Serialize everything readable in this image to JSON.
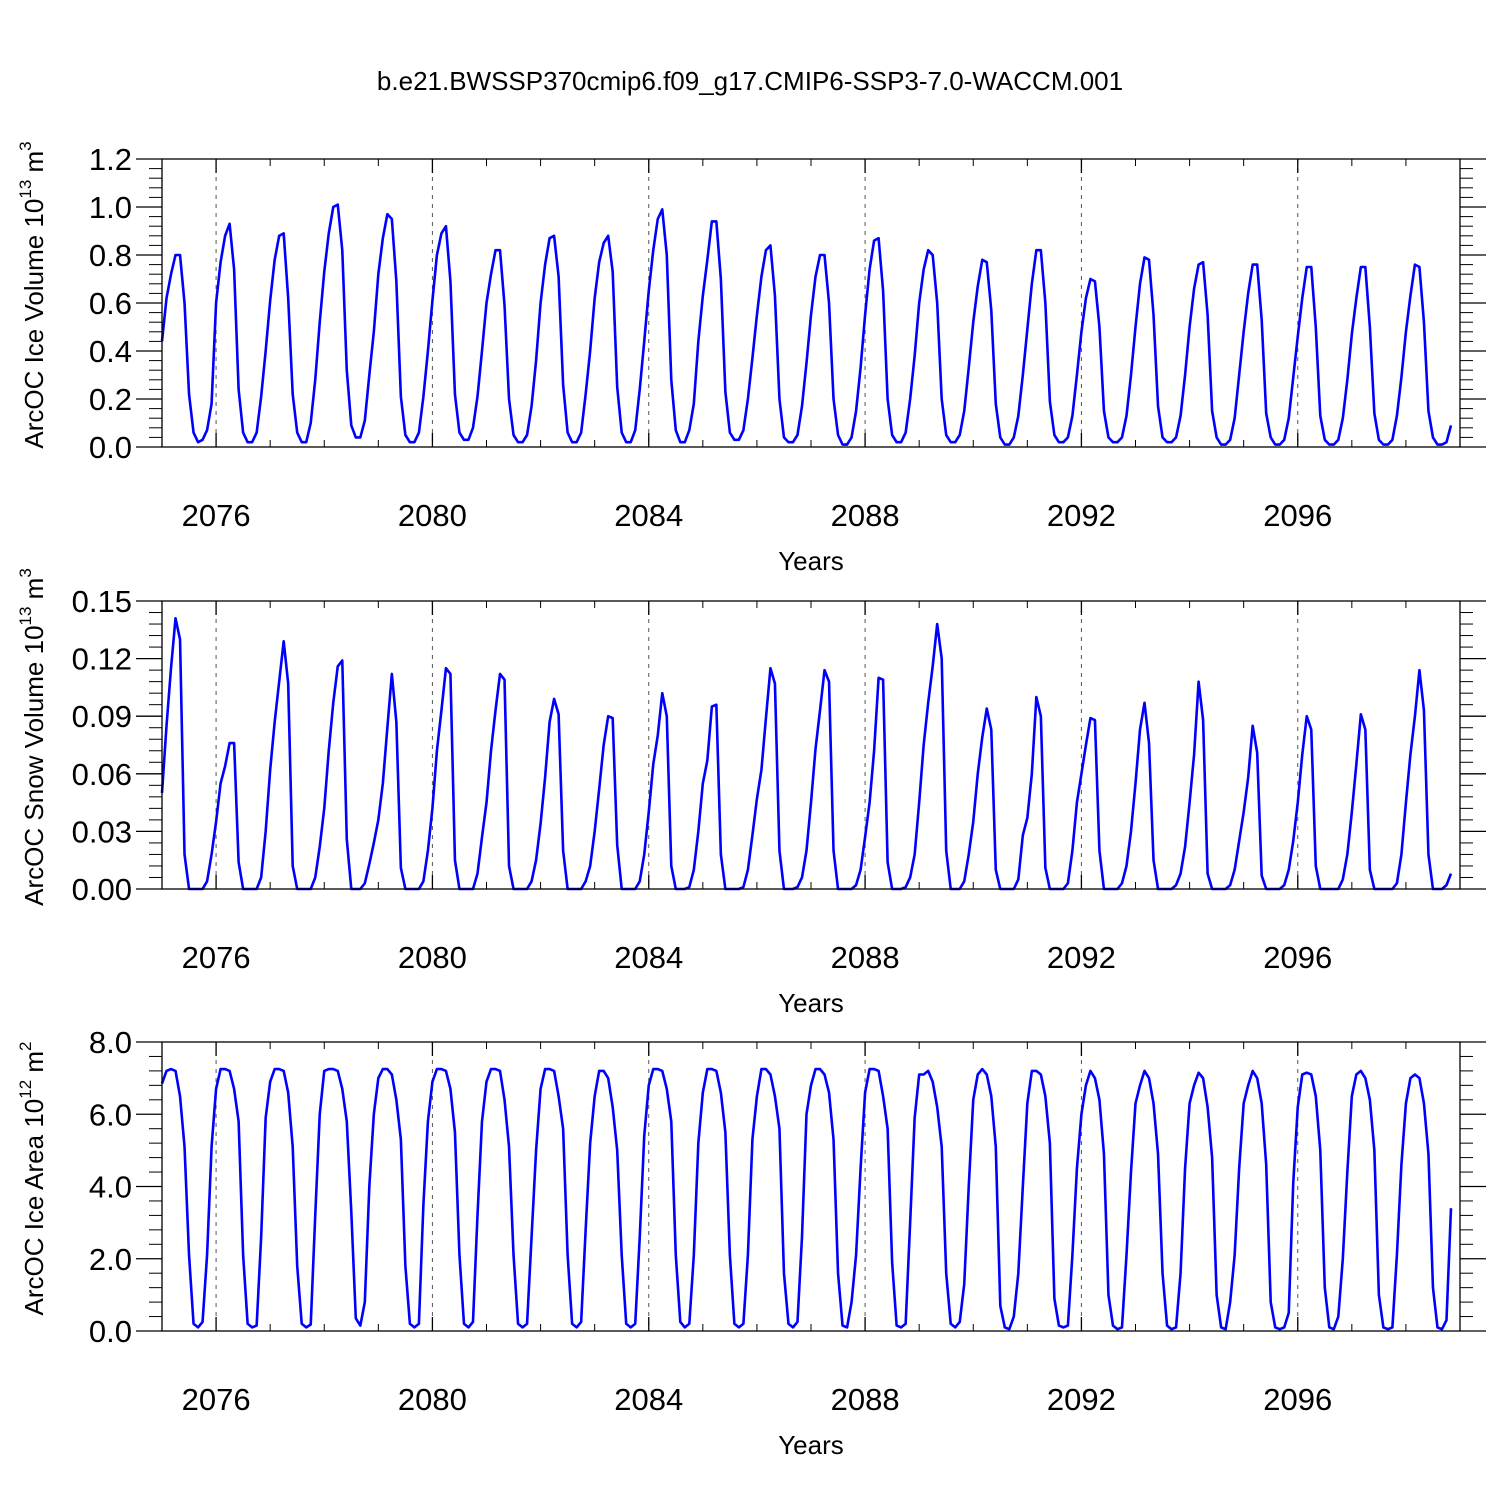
{
  "figure": {
    "title": "b.e21.BWSSP370cmip6.f09_g17.CMIP6-SSP3-7.0-WACCM.001"
  },
  "colors": {
    "line": "#0000ff",
    "axis": "#000000",
    "gridline": "#555555"
  },
  "chart_data": [
    {
      "type": "line",
      "ylabel": "ArcOC Ice Volume 10",
      "ylabel_exp": "13",
      "ylabel_unit": " m",
      "ylabel_unit_exp": "3",
      "xlabel": "Years",
      "xlim": [
        2075.0,
        2099.0
      ],
      "ylim": [
        0.0,
        1.2
      ],
      "xticks": [
        2076,
        2080,
        2084,
        2088,
        2092,
        2096
      ],
      "xtick_labels": [
        "2076",
        "2080",
        "2084",
        "2088",
        "2092",
        "2096"
      ],
      "yticks": [
        0.0,
        0.2,
        0.4,
        0.6,
        0.8,
        1.0,
        1.2
      ],
      "ytick_labels": [
        "0.0",
        "0.2",
        "0.4",
        "0.6",
        "0.8",
        "1.0",
        "1.2"
      ],
      "grid_x": "dashed at major ticks",
      "start_year": 2075.0,
      "months_per_year": 12,
      "series": [
        {
          "values": [
            0.44,
            0.62,
            0.72,
            0.8,
            0.8,
            0.6,
            0.22,
            0.06,
            0.02,
            0.03,
            0.07,
            0.18,
            0.6,
            0.77,
            0.88,
            0.93,
            0.74,
            0.24,
            0.06,
            0.02,
            0.02,
            0.06,
            0.21,
            0.4,
            0.61,
            0.78,
            0.88,
            0.89,
            0.62,
            0.22,
            0.06,
            0.02,
            0.02,
            0.1,
            0.28,
            0.52,
            0.73,
            0.89,
            1.0,
            1.01,
            0.82,
            0.32,
            0.09,
            0.04,
            0.04,
            0.11,
            0.3,
            0.48,
            0.72,
            0.87,
            0.97,
            0.95,
            0.69,
            0.21,
            0.05,
            0.02,
            0.02,
            0.06,
            0.21,
            0.4,
            0.61,
            0.8,
            0.89,
            0.92,
            0.69,
            0.22,
            0.06,
            0.03,
            0.03,
            0.08,
            0.21,
            0.4,
            0.6,
            0.72,
            0.82,
            0.82,
            0.59,
            0.2,
            0.05,
            0.02,
            0.02,
            0.05,
            0.17,
            0.36,
            0.6,
            0.76,
            0.87,
            0.88,
            0.71,
            0.26,
            0.06,
            0.02,
            0.02,
            0.06,
            0.22,
            0.4,
            0.62,
            0.77,
            0.85,
            0.88,
            0.73,
            0.25,
            0.06,
            0.02,
            0.02,
            0.07,
            0.24,
            0.44,
            0.65,
            0.82,
            0.95,
            0.99,
            0.8,
            0.28,
            0.07,
            0.02,
            0.02,
            0.07,
            0.18,
            0.44,
            0.63,
            0.78,
            0.94,
            0.94,
            0.7,
            0.23,
            0.06,
            0.03,
            0.03,
            0.07,
            0.2,
            0.37,
            0.55,
            0.71,
            0.82,
            0.84,
            0.63,
            0.2,
            0.04,
            0.02,
            0.02,
            0.05,
            0.17,
            0.35,
            0.55,
            0.71,
            0.8,
            0.8,
            0.6,
            0.2,
            0.05,
            0.01,
            0.01,
            0.04,
            0.15,
            0.33,
            0.55,
            0.74,
            0.86,
            0.87,
            0.65,
            0.2,
            0.05,
            0.02,
            0.02,
            0.06,
            0.2,
            0.38,
            0.6,
            0.74,
            0.82,
            0.8,
            0.6,
            0.2,
            0.05,
            0.02,
            0.02,
            0.05,
            0.15,
            0.33,
            0.52,
            0.67,
            0.78,
            0.77,
            0.57,
            0.18,
            0.04,
            0.01,
            0.01,
            0.04,
            0.13,
            0.3,
            0.49,
            0.68,
            0.82,
            0.82,
            0.6,
            0.19,
            0.05,
            0.02,
            0.02,
            0.04,
            0.13,
            0.3,
            0.48,
            0.62,
            0.7,
            0.69,
            0.5,
            0.15,
            0.04,
            0.02,
            0.02,
            0.04,
            0.13,
            0.3,
            0.5,
            0.68,
            0.79,
            0.78,
            0.55,
            0.17,
            0.04,
            0.02,
            0.02,
            0.04,
            0.13,
            0.3,
            0.5,
            0.66,
            0.76,
            0.77,
            0.55,
            0.15,
            0.04,
            0.01,
            0.01,
            0.03,
            0.12,
            0.3,
            0.48,
            0.64,
            0.76,
            0.76,
            0.53,
            0.14,
            0.04,
            0.01,
            0.01,
            0.03,
            0.12,
            0.29,
            0.46,
            0.62,
            0.75,
            0.75,
            0.5,
            0.13,
            0.03,
            0.01,
            0.01,
            0.03,
            0.12,
            0.28,
            0.47,
            0.62,
            0.75,
            0.75,
            0.5,
            0.14,
            0.03,
            0.01,
            0.01,
            0.03,
            0.13,
            0.29,
            0.48,
            0.63,
            0.76,
            0.75,
            0.52,
            0.15,
            0.04,
            0.01,
            0.01,
            0.02,
            0.09
          ]
        }
      ]
    },
    {
      "type": "line",
      "ylabel": "ArcOC Snow Volume 10",
      "ylabel_exp": "13",
      "ylabel_unit": " m",
      "ylabel_unit_exp": "3",
      "xlabel": "Years",
      "xlim": [
        2075.0,
        2099.0
      ],
      "ylim": [
        0.0,
        0.15
      ],
      "xticks": [
        2076,
        2080,
        2084,
        2088,
        2092,
        2096
      ],
      "xtick_labels": [
        "2076",
        "2080",
        "2084",
        "2088",
        "2092",
        "2096"
      ],
      "yticks": [
        0.0,
        0.03,
        0.06,
        0.09,
        0.12,
        0.15
      ],
      "ytick_labels": [
        "0.00",
        "0.03",
        "0.06",
        "0.09",
        "0.12",
        "0.15"
      ],
      "grid_x": "dashed at major ticks",
      "start_year": 2075.0,
      "months_per_year": 12,
      "series": [
        {
          "values": [
            0.05,
            0.085,
            0.115,
            0.141,
            0.13,
            0.018,
            0.0,
            0.0,
            0.0,
            0.0,
            0.004,
            0.018,
            0.035,
            0.055,
            0.064,
            0.076,
            0.076,
            0.014,
            0.0,
            0.0,
            0.0,
            0.0,
            0.006,
            0.03,
            0.062,
            0.087,
            0.108,
            0.129,
            0.107,
            0.012,
            0.0,
            0.0,
            0.0,
            0.0,
            0.006,
            0.022,
            0.042,
            0.072,
            0.097,
            0.116,
            0.119,
            0.026,
            0.0,
            0.0,
            0.0,
            0.003,
            0.013,
            0.024,
            0.036,
            0.055,
            0.084,
            0.112,
            0.087,
            0.011,
            0.0,
            0.0,
            0.0,
            0.0,
            0.004,
            0.02,
            0.042,
            0.072,
            0.093,
            0.115,
            0.112,
            0.015,
            0.0,
            0.0,
            0.0,
            0.0,
            0.008,
            0.027,
            0.045,
            0.072,
            0.093,
            0.112,
            0.109,
            0.012,
            0.0,
            0.0,
            0.0,
            0.0,
            0.004,
            0.015,
            0.034,
            0.058,
            0.087,
            0.099,
            0.091,
            0.02,
            0.0,
            0.0,
            0.0,
            0.0,
            0.004,
            0.012,
            0.03,
            0.052,
            0.075,
            0.09,
            0.089,
            0.023,
            0.0,
            0.0,
            0.0,
            0.0,
            0.004,
            0.018,
            0.04,
            0.065,
            0.08,
            0.102,
            0.09,
            0.012,
            0.0,
            0.0,
            0.0,
            0.001,
            0.01,
            0.03,
            0.055,
            0.067,
            0.095,
            0.096,
            0.018,
            0.0,
            0.0,
            0.0,
            0.0,
            0.001,
            0.01,
            0.028,
            0.047,
            0.062,
            0.089,
            0.115,
            0.107,
            0.02,
            0.0,
            0.0,
            0.0,
            0.001,
            0.006,
            0.02,
            0.045,
            0.073,
            0.093,
            0.114,
            0.108,
            0.02,
            0.0,
            0.0,
            0.0,
            0.0,
            0.002,
            0.01,
            0.027,
            0.045,
            0.072,
            0.11,
            0.109,
            0.014,
            0.0,
            0.0,
            0.0,
            0.001,
            0.006,
            0.018,
            0.045,
            0.075,
            0.097,
            0.116,
            0.138,
            0.12,
            0.02,
            0.0,
            0.0,
            0.0,
            0.004,
            0.018,
            0.035,
            0.06,
            0.079,
            0.094,
            0.083,
            0.01,
            0.0,
            0.0,
            0.0,
            0.0,
            0.005,
            0.028,
            0.037,
            0.06,
            0.1,
            0.09,
            0.011,
            0.0,
            0.0,
            0.0,
            0.0,
            0.003,
            0.02,
            0.045,
            0.06,
            0.075,
            0.089,
            0.088,
            0.02,
            0.0,
            0.0,
            0.0,
            0.0,
            0.003,
            0.012,
            0.03,
            0.055,
            0.083,
            0.097,
            0.076,
            0.015,
            0.0,
            0.0,
            0.0,
            0.0,
            0.002,
            0.008,
            0.022,
            0.045,
            0.07,
            0.108,
            0.088,
            0.008,
            0.0,
            0.0,
            0.0,
            0.0,
            0.002,
            0.01,
            0.025,
            0.04,
            0.058,
            0.085,
            0.071,
            0.007,
            0.0,
            0.0,
            0.0,
            0.0,
            0.002,
            0.01,
            0.025,
            0.045,
            0.07,
            0.09,
            0.083,
            0.012,
            0.0,
            0.0,
            0.0,
            0.0,
            0.0,
            0.005,
            0.018,
            0.04,
            0.065,
            0.091,
            0.083,
            0.01,
            0.0,
            0.0,
            0.0,
            0.0,
            0.0,
            0.003,
            0.018,
            0.045,
            0.07,
            0.09,
            0.114,
            0.093,
            0.018,
            0.0,
            0.0,
            0.0,
            0.002,
            0.008
          ]
        }
      ]
    },
    {
      "type": "line",
      "ylabel": "ArcOC Ice Area 10",
      "ylabel_exp": "12",
      "ylabel_unit": " m",
      "ylabel_unit_exp": "2",
      "xlabel": "Years",
      "xlim": [
        2075.0,
        2099.0
      ],
      "ylim": [
        0.0,
        8.0
      ],
      "xticks": [
        2076,
        2080,
        2084,
        2088,
        2092,
        2096
      ],
      "xtick_labels": [
        "2076",
        "2080",
        "2084",
        "2088",
        "2092",
        "2096"
      ],
      "yticks": [
        0.0,
        2.0,
        4.0,
        6.0,
        8.0
      ],
      "ytick_labels": [
        "0.0",
        "2.0",
        "4.0",
        "6.0",
        "8.0"
      ],
      "grid_x": "dashed at major ticks",
      "start_year": 2075.0,
      "months_per_year": 12,
      "series": [
        {
          "values": [
            6.85,
            7.2,
            7.25,
            7.2,
            6.5,
            5.1,
            2.1,
            0.2,
            0.1,
            0.25,
            2.1,
            5.1,
            6.7,
            7.25,
            7.25,
            7.2,
            6.7,
            5.8,
            2.1,
            0.2,
            0.1,
            0.15,
            2.6,
            5.9,
            6.9,
            7.25,
            7.25,
            7.2,
            6.6,
            5.1,
            1.8,
            0.2,
            0.1,
            0.18,
            3.2,
            6.0,
            7.2,
            7.25,
            7.25,
            7.2,
            6.7,
            5.8,
            3.3,
            0.35,
            0.15,
            0.8,
            4.0,
            6.0,
            7.0,
            7.25,
            7.25,
            7.1,
            6.4,
            5.3,
            1.8,
            0.2,
            0.1,
            0.2,
            3.5,
            5.8,
            6.9,
            7.25,
            7.25,
            7.2,
            6.7,
            5.5,
            2.1,
            0.2,
            0.1,
            0.25,
            3.2,
            5.8,
            6.9,
            7.25,
            7.25,
            7.2,
            6.4,
            5.1,
            2.1,
            0.2,
            0.1,
            0.2,
            2.6,
            5.0,
            6.7,
            7.25,
            7.25,
            7.2,
            6.5,
            5.6,
            2.1,
            0.2,
            0.1,
            0.25,
            2.8,
            5.2,
            6.5,
            7.2,
            7.2,
            7.0,
            6.2,
            5.0,
            2.1,
            0.2,
            0.1,
            0.2,
            2.6,
            5.4,
            6.8,
            7.25,
            7.25,
            7.2,
            6.7,
            5.8,
            2.1,
            0.25,
            0.1,
            0.2,
            2.1,
            5.2,
            6.6,
            7.25,
            7.25,
            7.2,
            6.6,
            5.5,
            2.1,
            0.2,
            0.1,
            0.2,
            2.1,
            5.3,
            6.5,
            7.25,
            7.25,
            7.1,
            6.5,
            5.6,
            1.6,
            0.2,
            0.1,
            0.25,
            2.6,
            6.0,
            6.8,
            7.25,
            7.25,
            7.1,
            6.6,
            5.3,
            1.6,
            0.15,
            0.1,
            0.8,
            2.1,
            4.5,
            6.6,
            7.25,
            7.25,
            7.2,
            6.5,
            5.6,
            1.9,
            0.15,
            0.1,
            0.2,
            3.0,
            5.9,
            7.1,
            7.1,
            7.2,
            6.9,
            6.2,
            5.1,
            1.6,
            0.2,
            0.1,
            0.25,
            1.3,
            4.0,
            6.4,
            7.1,
            7.25,
            7.1,
            6.5,
            5.1,
            0.7,
            0.1,
            0.05,
            0.4,
            1.6,
            4.0,
            6.3,
            7.2,
            7.2,
            7.1,
            6.5,
            5.2,
            0.9,
            0.15,
            0.1,
            0.15,
            2.1,
            4.5,
            6.0,
            6.8,
            7.2,
            7.0,
            6.4,
            4.9,
            1.0,
            0.15,
            0.05,
            0.1,
            2.1,
            4.4,
            6.3,
            6.8,
            7.2,
            7.0,
            6.3,
            4.9,
            1.6,
            0.15,
            0.05,
            0.1,
            1.6,
            4.5,
            6.3,
            6.8,
            7.15,
            7.0,
            6.2,
            4.8,
            1.0,
            0.1,
            0.05,
            0.8,
            2.1,
            4.5,
            6.3,
            6.8,
            7.2,
            7.0,
            6.3,
            4.6,
            0.8,
            0.1,
            0.05,
            0.1,
            0.5,
            4.1,
            6.2,
            7.1,
            7.15,
            7.1,
            6.5,
            5.0,
            1.2,
            0.1,
            0.05,
            0.4,
            2.0,
            4.4,
            6.5,
            7.1,
            7.2,
            7.0,
            6.4,
            5.0,
            1.0,
            0.1,
            0.05,
            0.1,
            2.1,
            4.6,
            6.3,
            7.0,
            7.1,
            7.0,
            6.3,
            4.9,
            1.2,
            0.1,
            0.05,
            0.3,
            3.4
          ]
        }
      ]
    }
  ]
}
